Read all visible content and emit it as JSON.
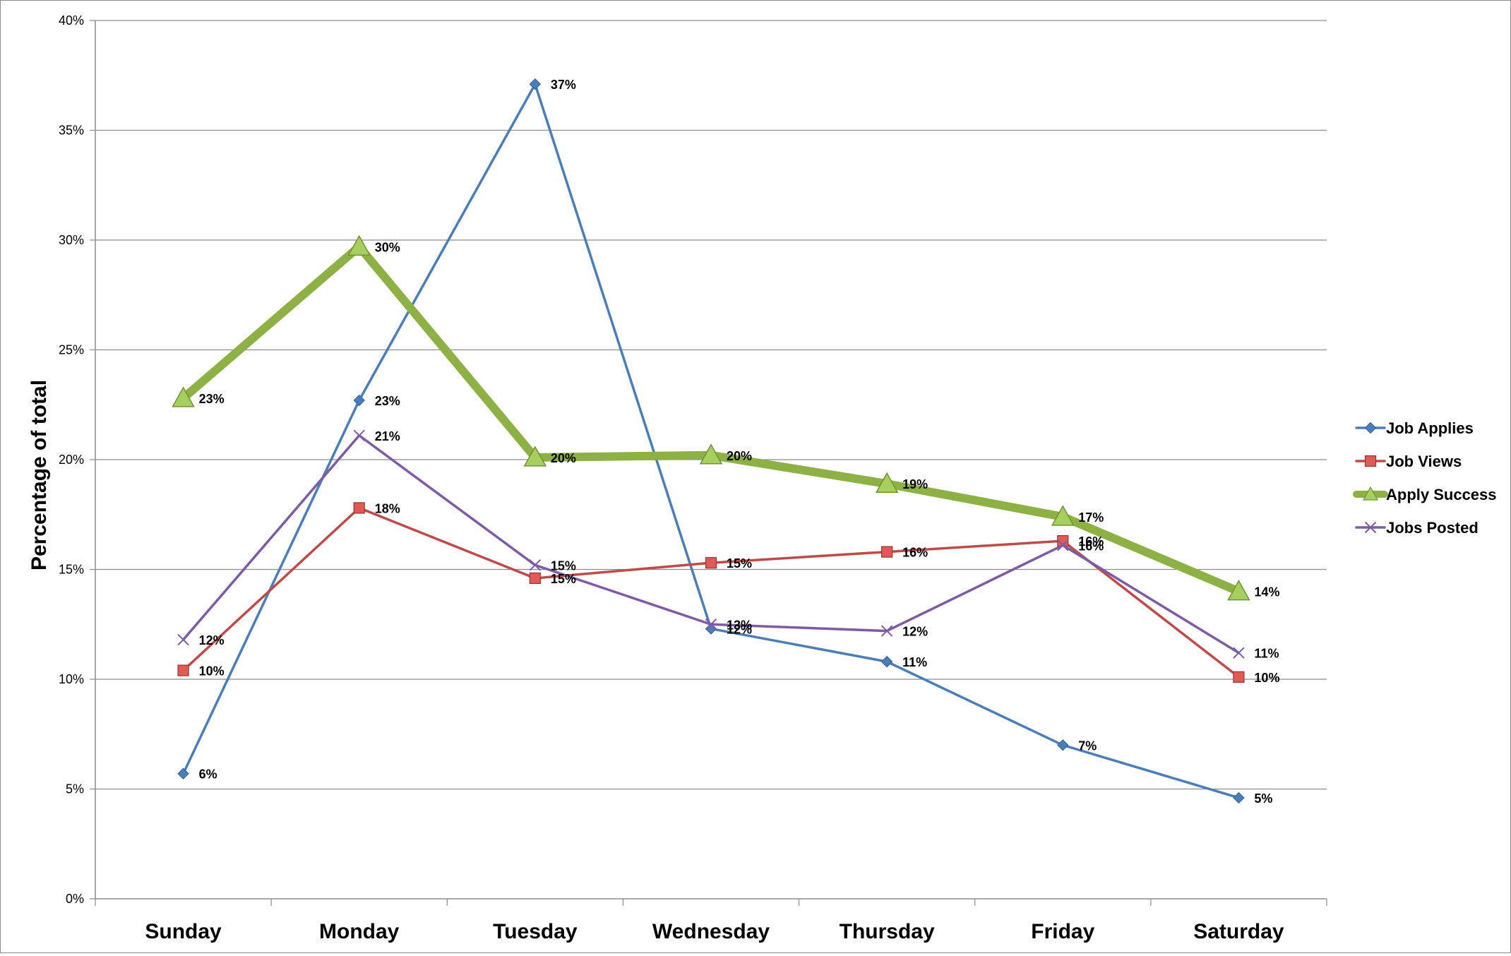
{
  "chart_data": {
    "type": "line",
    "title": "",
    "xlabel": "",
    "ylabel": "Percentage of total",
    "ylim": [
      0,
      40
    ],
    "y_tick_step": 5,
    "y_tick_format": "percent",
    "grid": "horizontal",
    "legend_position": "right",
    "categories": [
      "Sunday",
      "Monday",
      "Tuesday",
      "Wednesday",
      "Thursday",
      "Friday",
      "Saturday"
    ],
    "series": [
      {
        "name": "Job Applies",
        "values": [
          5.7,
          22.7,
          37.1,
          12.3,
          10.8,
          7.0,
          4.6
        ],
        "labels": [
          "6%",
          "23%",
          "37%",
          "12%",
          "11%",
          "7%",
          "5%"
        ],
        "color": "#4a7ebb",
        "marker": "diamond",
        "line_width": "thin"
      },
      {
        "name": "Job Views",
        "values": [
          10.4,
          17.8,
          14.6,
          15.3,
          15.8,
          16.3,
          10.1
        ],
        "labels": [
          "10%",
          "18%",
          "15%",
          "15%",
          "16%",
          "16%",
          "10%"
        ],
        "color": "#be4b48",
        "marker": "square",
        "line_width": "thin"
      },
      {
        "name": "Apply Success",
        "values": [
          22.8,
          29.7,
          20.1,
          20.2,
          18.9,
          17.4,
          14.0
        ],
        "labels": [
          "23%",
          "30%",
          "20%",
          "20%",
          "19%",
          "17%",
          "14%"
        ],
        "color": "#8db144",
        "marker": "triangle",
        "line_width": "thick"
      },
      {
        "name": "Jobs Posted",
        "values": [
          11.8,
          21.1,
          15.2,
          12.5,
          12.2,
          16.1,
          11.2
        ],
        "labels": [
          "12%",
          "21%",
          "15%",
          "13%",
          "12%",
          "16%",
          "11%"
        ],
        "color": "#7d5ba6",
        "marker": "x",
        "line_width": "thin"
      }
    ]
  }
}
